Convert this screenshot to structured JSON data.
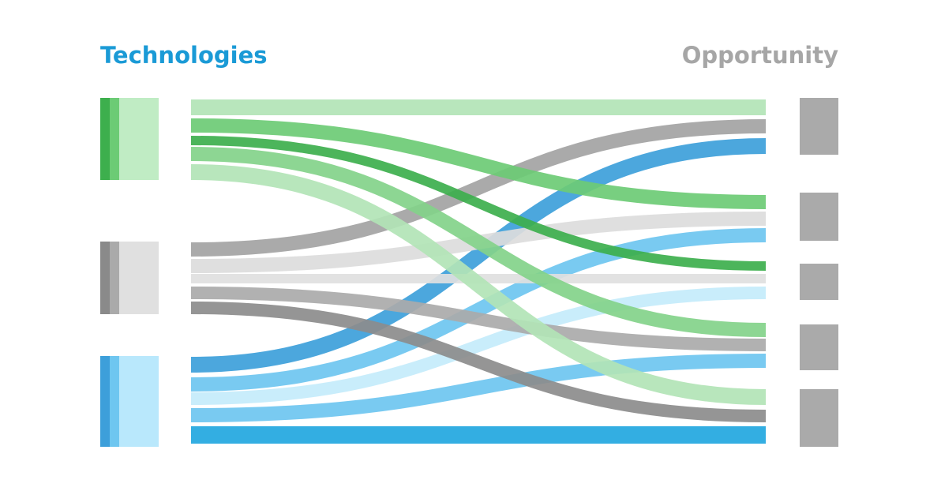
{
  "header": {
    "left_title": "Technologies",
    "right_title": "Opportunity"
  }
}
